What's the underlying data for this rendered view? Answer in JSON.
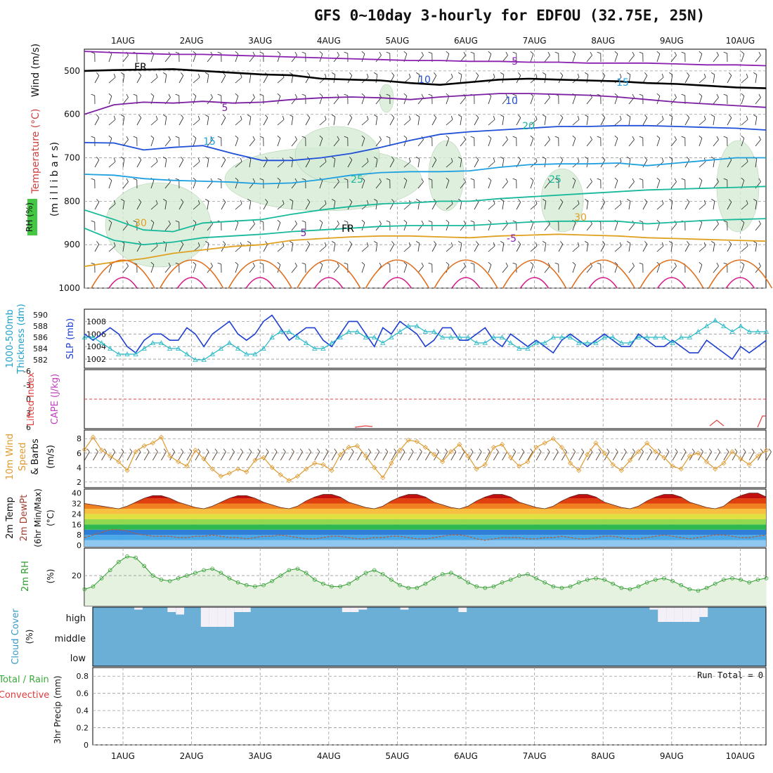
{
  "title": "GFS 0~10day 3-hourly for EDFOU (32.75E, 25N)",
  "dates": [
    "1AUG",
    "2AUG",
    "3AUG",
    "4AUG",
    "5AUG",
    "6AUG",
    "7AUG",
    "8AUG",
    "9AUG",
    "10AUG"
  ],
  "colors": {
    "frame": "#000000",
    "grid": "#9a9a9a",
    "temp_minus5": "#8a1fb0",
    "fr": "#000000",
    "temp_5": "#7b1fa2",
    "temp_10": "#1f4fd8",
    "temp_15": "#1ea0e0",
    "temp_20": "#17b99a",
    "temp_25": "#17b99a",
    "temp_30": "#e0a020",
    "temp_35": "#e07020",
    "temp_40": "#d81b8a",
    "rh_fill": "#d6ecd6",
    "slp": "#1f3fd0",
    "thickness": "#26b8c8",
    "wind_speed": "#e09a30",
    "rh2m": "#2e9d2e",
    "cloud": "#6baed6",
    "cloud_clear": "#f3f0f8",
    "precip_total": "#3aaa3a",
    "precip_convective": "#e03a3a"
  },
  "chart_data": [
    {
      "type": "line",
      "panel": "upper-air",
      "y_axis_label": "(m i l l i b a r s)",
      "side_labels": [
        "Wind (m/s)",
        "Temperature (°C)",
        "RH (%)"
      ],
      "y_ticks": [
        500,
        600,
        700,
        800,
        900,
        1000
      ],
      "ylim": [
        450,
        1000
      ],
      "x_day_range": [
        0.5,
        10.3
      ],
      "series": [
        {
          "name": "-5",
          "values": [
            455,
            458,
            460,
            462,
            462,
            464,
            466,
            468,
            470,
            472,
            474,
            476,
            476,
            478,
            478,
            480,
            480,
            482,
            482,
            482,
            484,
            486,
            486,
            488
          ]
        },
        {
          "name": "FR",
          "values": [
            500,
            498,
            497,
            496,
            500,
            504,
            508,
            510,
            518,
            520,
            522,
            528,
            532,
            526,
            520,
            518,
            520,
            522,
            524,
            528,
            530,
            534,
            538,
            540
          ]
        },
        {
          "name": "5",
          "values": [
            600,
            578,
            572,
            574,
            570,
            574,
            572,
            566,
            562,
            560,
            562,
            566,
            560,
            556,
            552,
            552,
            554,
            556,
            560,
            566,
            572,
            576,
            580,
            584
          ]
        },
        {
          "name": "10",
          "values": [
            665,
            666,
            682,
            676,
            672,
            690,
            706,
            706,
            700,
            690,
            676,
            660,
            646,
            640,
            636,
            632,
            628,
            628,
            626,
            626,
            628,
            630,
            632,
            636
          ]
        },
        {
          "name": "15",
          "values": [
            738,
            740,
            748,
            752,
            754,
            756,
            760,
            758,
            750,
            740,
            734,
            732,
            732,
            730,
            722,
            716,
            714,
            714,
            712,
            718,
            712,
            706,
            700,
            700
          ]
        },
        {
          "name": "20",
          "values": [
            820,
            842,
            866,
            870,
            850,
            846,
            842,
            830,
            820,
            812,
            806,
            804,
            800,
            800,
            794,
            790,
            786,
            782,
            778,
            774,
            772,
            770,
            768,
            766
          ]
        },
        {
          "name": "25",
          "values": [
            862,
            890,
            900,
            894,
            884,
            880,
            876,
            870,
            866,
            862,
            858,
            856,
            856,
            856,
            852,
            848,
            846,
            846,
            846,
            852,
            848,
            844,
            842,
            840
          ]
        },
        {
          "name": "30",
          "values": [
            950,
            940,
            932,
            920,
            912,
            904,
            900,
            890,
            886,
            882,
            880,
            880,
            882,
            884,
            880,
            878,
            876,
            878,
            880,
            884,
            886,
            888,
            890,
            892
          ]
        }
      ],
      "contour_labels": [
        "-5",
        "FR",
        "5",
        "10",
        "15",
        "20",
        "25",
        "30",
        "FR",
        "5",
        "10",
        "15",
        "25",
        "30",
        "-5",
        "10",
        "15",
        "20",
        "25",
        "30"
      ]
    },
    {
      "type": "line",
      "panel": "pressure",
      "left_labels": [
        "1000-500mb",
        "Thickness (dm)",
        "SLP (mb)"
      ],
      "thickness_ticks": [
        582,
        584,
        586,
        588,
        590
      ],
      "slp_ticks": [
        1002,
        1004,
        1006,
        1008
      ],
      "series": [
        {
          "name": "SLP (mb)",
          "values": [
            1006,
            1005,
            1006,
            1007,
            1006,
            1004,
            1003,
            1005,
            1006,
            1006,
            1005,
            1005,
            1007,
            1006,
            1004,
            1006,
            1007,
            1008,
            1006,
            1005,
            1006,
            1008,
            1009,
            1007,
            1005,
            1006,
            1007,
            1007,
            1005,
            1004,
            1006,
            1008,
            1008,
            1006,
            1004,
            1007,
            1006,
            1008,
            1007,
            1006,
            1004,
            1005,
            1007,
            1007,
            1005,
            1005,
            1006,
            1007,
            1005,
            1004,
            1006,
            1005,
            1004,
            1005,
            1004,
            1003,
            1005,
            1006,
            1005,
            1004,
            1005,
            1006,
            1005,
            1004,
            1004,
            1006,
            1005,
            1004,
            1004,
            1005,
            1004,
            1003,
            1003,
            1005,
            1004,
            1003,
            1002,
            1004,
            1003,
            1004,
            1005
          ]
        },
        {
          "name": "Thickness (dm)",
          "values": [
            586,
            586,
            585,
            584,
            583,
            583,
            583,
            584,
            585,
            585,
            584,
            584,
            583,
            582,
            582,
            583,
            584,
            585,
            584,
            583,
            583,
            584,
            586,
            587,
            587,
            586,
            585,
            584,
            584,
            585,
            586,
            587,
            587,
            586,
            586,
            585,
            586,
            587,
            588,
            588,
            587,
            587,
            586,
            586,
            586,
            586,
            585,
            585,
            586,
            586,
            585,
            584,
            584,
            585,
            585,
            586,
            586,
            586,
            585,
            585,
            585,
            586,
            586,
            585,
            585,
            586,
            586,
            586,
            586,
            585,
            586,
            586,
            587,
            588,
            589,
            588,
            587,
            588,
            587,
            587,
            587
          ]
        }
      ]
    },
    {
      "type": "line",
      "panel": "stability",
      "left_labels": [
        "Lifted Index",
        "CAPE (J/kg)"
      ],
      "li_ticks": [
        "-6",
        "-3",
        "0",
        "3",
        "6"
      ],
      "series": [
        {
          "name": "Lifted Index",
          "values": [
            0,
            0,
            0
          ]
        },
        {
          "name": "CAPE (J/kg)",
          "values": []
        }
      ]
    },
    {
      "type": "line",
      "panel": "wind10m",
      "left_labels": [
        "10m Wind",
        "Speed",
        "& Barbs",
        "(m/s)"
      ],
      "y_ticks": [
        2,
        4,
        6,
        8
      ],
      "series": [
        {
          "name": "Speed",
          "values": [
            6.5,
            8.2,
            6.4,
            5.6,
            4.8,
            3.6,
            6.2,
            7.0,
            7.4,
            8.2,
            5.6,
            4.8,
            4.2,
            6.4,
            5.2,
            3.8,
            2.8,
            3.2,
            3.8,
            3.4,
            5.0,
            5.4,
            4.0,
            3.0,
            2.2,
            2.8,
            3.8,
            4.6,
            4.4,
            3.6,
            5.8,
            6.8,
            7.0,
            5.6,
            4.0,
            2.6,
            4.6,
            6.4,
            7.8,
            7.6,
            6.8,
            5.8,
            4.8,
            6.2,
            7.2,
            5.6,
            3.8,
            4.4,
            6.8,
            7.2,
            5.4,
            4.2,
            4.8,
            6.8,
            7.4,
            8.0,
            6.8,
            4.6,
            3.6,
            5.8,
            7.4,
            6.0,
            4.4,
            3.6,
            5.0,
            6.2,
            7.4,
            6.2,
            5.4,
            4.2,
            3.8,
            5.6,
            6.0,
            4.8,
            3.8,
            4.6,
            6.2,
            5.2,
            4.4,
            5.6,
            6.4
          ]
        }
      ]
    },
    {
      "type": "area",
      "panel": "temperature2m",
      "left_labels": [
        "2m Temp",
        "2m DewPt",
        "(6hr Min/Max)",
        "(°C)"
      ],
      "y_ticks": [
        0,
        8,
        16,
        24,
        32,
        40
      ],
      "series": [
        {
          "name": "2m Temp",
          "values": [
            32,
            31,
            30,
            29,
            28,
            30,
            33,
            36,
            38,
            38,
            36,
            33,
            31,
            29,
            28,
            30,
            33,
            36,
            38,
            38,
            36,
            33,
            31,
            29,
            28,
            30,
            34,
            37,
            39,
            39,
            37,
            33,
            31,
            29,
            28,
            30,
            34,
            37,
            39,
            39,
            37,
            33,
            31,
            29,
            28,
            30,
            34,
            37,
            39,
            39,
            37,
            33,
            31,
            29,
            28,
            30,
            34,
            37,
            39,
            39,
            37,
            33,
            31,
            29,
            28,
            30,
            34,
            37,
            39,
            39,
            37,
            33,
            31,
            29,
            28,
            30,
            35,
            38,
            40,
            40,
            37
          ]
        },
        {
          "name": "2m DewPt",
          "values": [
            6,
            8,
            10,
            12,
            12,
            11,
            9,
            8,
            7,
            7,
            7,
            6,
            6,
            7,
            7,
            8,
            7,
            6,
            6,
            5,
            6,
            7,
            7,
            8,
            7,
            6,
            5,
            5,
            6,
            7,
            7,
            6,
            5,
            5,
            6,
            6,
            7,
            7,
            6,
            5,
            5,
            6,
            7,
            8,
            8,
            7,
            5,
            4,
            5,
            6,
            6,
            6,
            5,
            5,
            6,
            6,
            7,
            6,
            5,
            5,
            6,
            7,
            7,
            6,
            5,
            5,
            6,
            7,
            8,
            7,
            6,
            5,
            6,
            7,
            8,
            8,
            7,
            6,
            6,
            7,
            8
          ]
        }
      ]
    },
    {
      "type": "area",
      "panel": "rh2m",
      "left_labels": [
        "2m RH",
        "(%)"
      ],
      "y_ticks": [
        20
      ],
      "series": [
        {
          "name": "2m RH",
          "values": [
            10,
            12,
            18,
            24,
            30,
            34,
            33,
            27,
            20,
            17,
            16,
            18,
            20,
            22,
            24,
            25,
            22,
            18,
            15,
            13,
            12,
            13,
            16,
            20,
            24,
            25,
            22,
            17,
            14,
            12,
            12,
            14,
            18,
            22,
            24,
            21,
            17,
            13,
            11,
            11,
            14,
            18,
            21,
            22,
            19,
            15,
            12,
            11,
            12,
            15,
            17,
            20,
            21,
            18,
            15,
            12,
            11,
            12,
            15,
            17,
            18,
            17,
            14,
            11,
            10,
            12,
            15,
            17,
            18,
            16,
            13,
            10,
            9,
            11,
            14,
            17,
            18,
            17,
            15,
            17,
            18
          ]
        }
      ]
    },
    {
      "type": "bar",
      "panel": "cloudcover",
      "left_labels": [
        "Cloud Cover",
        "(%)"
      ],
      "levels": [
        "high",
        "middle",
        "low"
      ],
      "series": [
        {
          "name": "high",
          "values": [
            0,
            0,
            0,
            0,
            0,
            5,
            0,
            0,
            0,
            10,
            15,
            0,
            0,
            40,
            40,
            40,
            40,
            10,
            10,
            0,
            0,
            0,
            0,
            0,
            0,
            0,
            0,
            0,
            0,
            0,
            10,
            10,
            5,
            0,
            0,
            0,
            0,
            5,
            0,
            0,
            0,
            0,
            0,
            0,
            10,
            0,
            0,
            0,
            0,
            0,
            0,
            0,
            0,
            0,
            0,
            0,
            0,
            0,
            0,
            0,
            0,
            0,
            0,
            0,
            0,
            0,
            0,
            5,
            30,
            30,
            30,
            30,
            30,
            20,
            0,
            0,
            0,
            0,
            0,
            0,
            0
          ]
        }
      ]
    },
    {
      "type": "bar",
      "panel": "precip",
      "left_labels": [
        "Total / Rain",
        "Convective",
        "3hr Precip (mm)"
      ],
      "run_total_label": "Run Total = 0",
      "y_ticks": [
        "0",
        "0.2",
        "0.4",
        "0.6",
        "0.8"
      ],
      "series": [
        {
          "name": "Total",
          "values": [
            0
          ]
        },
        {
          "name": "Convective",
          "values": [
            0
          ]
        }
      ]
    }
  ]
}
